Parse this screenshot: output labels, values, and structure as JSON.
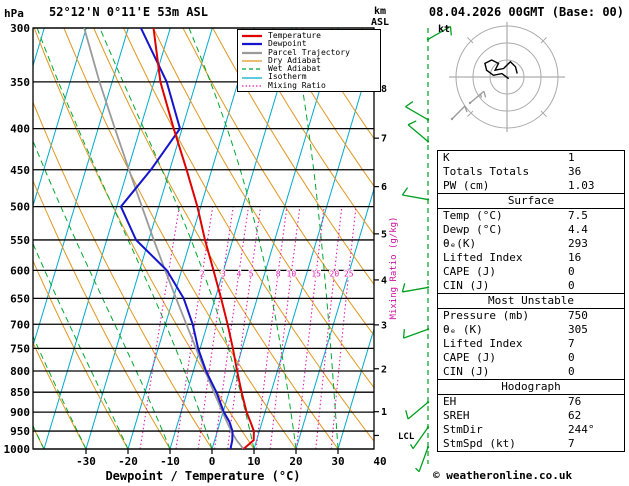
{
  "header": {
    "station": "52°12'N 0°11'E 53m ASL",
    "datetime": "08.04.2026 00GMT (Base: 00)",
    "pressure_unit": "hPa",
    "alt_unit_line1": "km",
    "alt_unit_line2": "ASL"
  },
  "axes": {
    "xlabel": "Dewpoint / Temperature (°C)",
    "x_ticks": [
      -30,
      -20,
      -10,
      0,
      10,
      20,
      30,
      40
    ],
    "pressure_ticks": [
      300,
      350,
      400,
      450,
      500,
      550,
      600,
      650,
      700,
      750,
      800,
      850,
      900,
      950,
      1000
    ],
    "km_ticks": [
      1,
      2,
      3,
      4,
      5,
      6,
      7,
      8
    ],
    "mixing_ratio_label": "Mixing Ratio (g/kg)",
    "mixing_ratio_values": [
      1,
      2,
      3,
      4,
      5,
      8,
      10,
      15,
      20,
      25
    ],
    "lcl_label": "LCL"
  },
  "legend": [
    {
      "label": "Temperature",
      "color": "#e00000",
      "style": "solid",
      "width": 2.2
    },
    {
      "label": "Dewpoint",
      "color": "#1414cc",
      "style": "solid",
      "width": 2.2
    },
    {
      "label": "Parcel Trajectory",
      "color": "#9a9a9a",
      "style": "solid",
      "width": 2.2
    },
    {
      "label": "Dry Adiabat",
      "color": "#e09820",
      "style": "solid",
      "width": 1.2
    },
    {
      "label": "Wet Adiabat",
      "color": "#00a830",
      "style": "dashed",
      "width": 1.2
    },
    {
      "label": "Isotherm",
      "color": "#00aacc",
      "style": "solid",
      "width": 1.2
    },
    {
      "label": "Mixing Ratio",
      "color": "#e020b0",
      "style": "dotted",
      "width": 1.2
    }
  ],
  "colors": {
    "temperature": "#e00000",
    "dewpoint": "#1414cc",
    "parcel": "#9a9a9a",
    "dry_adiabat": "#e09820",
    "wet_adiabat": "#00a830",
    "isotherm": "#00aacc",
    "mixing_ratio": "#e020b0",
    "wind_barb": "#00a020",
    "grid": "#000000"
  },
  "chart_data": {
    "type": "skewt-log-p",
    "pressure_range_hpa": [
      300,
      1000
    ],
    "surface": {
      "temp_c": 7.5,
      "dewp_c": 4.4
    },
    "lcl_hpa": 962,
    "pressure_levels": [
      1000,
      975,
      950,
      925,
      900,
      850,
      800,
      750,
      700,
      650,
      600,
      550,
      500,
      450,
      400,
      350,
      300
    ],
    "temperature_c": [
      7.5,
      9.3,
      8.7,
      7.2,
      5.6,
      3.0,
      0.4,
      -2.2,
      -5.2,
      -8.6,
      -12.4,
      -16.6,
      -20.8,
      -26.0,
      -32.0,
      -38.5,
      -44.0
    ],
    "dewpoint_c": [
      4.4,
      4.2,
      3.6,
      2.2,
      0.2,
      -3.0,
      -7.0,
      -10.5,
      -13.5,
      -17.5,
      -23.5,
      -33.0,
      -39.0,
      -34.5,
      -30.5,
      -37.0,
      -47.0
    ],
    "parcel_c": [
      7.5,
      5.2,
      3.3,
      1.6,
      -0.1,
      -3.6,
      -7.2,
      -11.0,
      -15.0,
      -19.3,
      -23.9,
      -28.8,
      -34.0,
      -39.7,
      -46.0,
      -53.0,
      -60.5
    ],
    "wind_barbs": [
      {
        "p": 310,
        "dir": 60,
        "kt": 10
      },
      {
        "p": 390,
        "dir": 300,
        "kt": 10
      },
      {
        "p": 415,
        "dir": 310,
        "kt": 10
      },
      {
        "p": 490,
        "dir": 280,
        "kt": 10
      },
      {
        "p": 630,
        "dir": 260,
        "kt": 10
      },
      {
        "p": 710,
        "dir": 250,
        "kt": 10
      },
      {
        "p": 875,
        "dir": 230,
        "kt": 10
      },
      {
        "p": 940,
        "dir": 215,
        "kt": 5
      },
      {
        "p": 995,
        "dir": 200,
        "kt": 5
      }
    ],
    "hodograph": {
      "unit": "kt",
      "rings_kt": [
        10,
        20,
        30
      ],
      "trace_uv_kt": [
        [
          1,
          -1
        ],
        [
          -3,
          2
        ],
        [
          -8,
          1
        ],
        [
          -12,
          4
        ],
        [
          -13,
          8
        ],
        [
          -9,
          10
        ],
        [
          -5,
          8
        ],
        [
          -7,
          4
        ],
        [
          -2,
          5
        ],
        [
          2,
          9
        ],
        [
          5,
          6
        ],
        [
          6,
          2
        ]
      ]
    }
  },
  "table": {
    "rows_top": [
      [
        "K",
        "1"
      ],
      [
        "Totals Totals",
        "36"
      ],
      [
        "PW (cm)",
        "1.03"
      ]
    ],
    "sections": [
      {
        "title": "Surface",
        "rows": [
          [
            "Temp (°C)",
            "7.5"
          ],
          [
            "Dewp (°C)",
            "4.4"
          ],
          [
            "θₑ(K)",
            "293"
          ],
          [
            "Lifted Index",
            "16"
          ],
          [
            "CAPE (J)",
            "0"
          ],
          [
            "CIN (J)",
            "0"
          ]
        ]
      },
      {
        "title": "Most Unstable",
        "rows": [
          [
            "Pressure (mb)",
            "750"
          ],
          [
            "θₑ (K)",
            "305"
          ],
          [
            "Lifted Index",
            "7"
          ],
          [
            "CAPE (J)",
            "0"
          ],
          [
            "CIN (J)",
            "0"
          ]
        ]
      },
      {
        "title": "Hodograph",
        "rows": [
          [
            "EH",
            "76"
          ],
          [
            "SREH",
            "62"
          ],
          [
            "StmDir",
            "244°"
          ],
          [
            "StmSpd (kt)",
            "7"
          ]
        ]
      }
    ]
  },
  "footer": {
    "copyright": "© weatheronline.co.uk"
  }
}
